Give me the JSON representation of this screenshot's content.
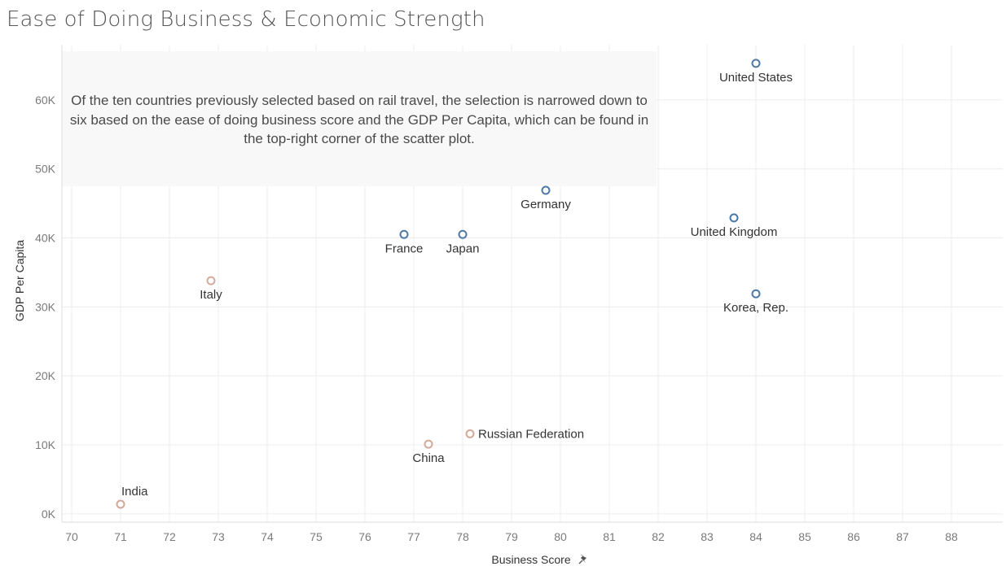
{
  "page": {
    "title": "Ease of Doing Business & Economic Strength",
    "annotation": "Of the ten countries previously selected based on rail travel, the selection is narrowed down to six based on the ease of doing business score and the GDP Per Capita, which can be found in the top-right corner of the scatter plot.",
    "pin_icon": "pin-icon"
  },
  "colors": {
    "selected": "#4e79a7",
    "unselected": "#d4a99a",
    "grid": "#ececec",
    "annotation_bg": "#f8f8f8"
  },
  "chart_data": {
    "type": "scatter",
    "title": "Ease of Doing Business & Economic Strength",
    "xlabel": "Business Score",
    "ylabel": "GDP Per Capita",
    "xlim": [
      69.8,
      89.05
    ],
    "ylim": [
      -1200,
      68000
    ],
    "x_ticks": [
      70,
      71,
      72,
      73,
      74,
      75,
      76,
      77,
      78,
      79,
      80,
      81,
      82,
      83,
      84,
      85,
      86,
      87,
      88
    ],
    "y_ticks": [
      0,
      10000,
      20000,
      30000,
      40000,
      50000,
      60000
    ],
    "y_tick_labels": [
      "0K",
      "10K",
      "20K",
      "30K",
      "40K",
      "50K",
      "60K"
    ],
    "grid": true,
    "points": [
      {
        "name": "United States",
        "x": 84.0,
        "y": 65300,
        "selected": true,
        "label_pos": "below"
      },
      {
        "name": "Germany",
        "x": 79.7,
        "y": 46900,
        "selected": true,
        "label_pos": "below"
      },
      {
        "name": "United Kingdom",
        "x": 83.55,
        "y": 42900,
        "selected": true,
        "label_pos": "below"
      },
      {
        "name": "France",
        "x": 76.8,
        "y": 40500,
        "selected": true,
        "label_pos": "below"
      },
      {
        "name": "Japan",
        "x": 78.0,
        "y": 40500,
        "selected": true,
        "label_pos": "below"
      },
      {
        "name": "Korea, Rep.",
        "x": 84.0,
        "y": 31900,
        "selected": true,
        "label_pos": "below"
      },
      {
        "name": "Italy",
        "x": 72.85,
        "y": 33800,
        "selected": false,
        "label_pos": "below"
      },
      {
        "name": "Russian Federation",
        "x": 78.15,
        "y": 11600,
        "selected": false,
        "label_pos": "right"
      },
      {
        "name": "China",
        "x": 77.3,
        "y": 10100,
        "selected": false,
        "label_pos": "below"
      },
      {
        "name": "India",
        "x": 71.0,
        "y": 1400,
        "selected": false,
        "label_pos": "above"
      }
    ]
  }
}
